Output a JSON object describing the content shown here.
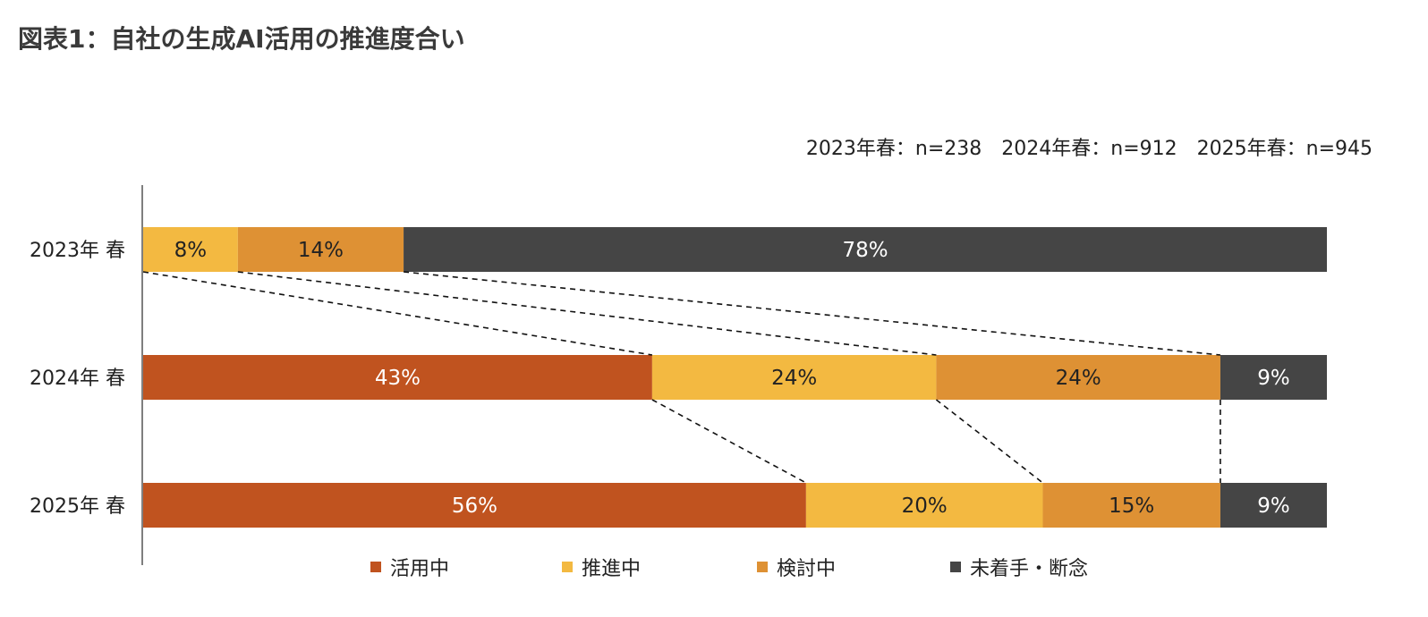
{
  "title": "図表1：自社の生成AI活用の推進度合い",
  "sample_note": "2023年春：n=238　2024年春：n=912　2025年春：n=945",
  "colors": {
    "活用中": "#c0531f",
    "推進中": "#f3b941",
    "検討中": "#de9134",
    "未着手・断念": "#454545"
  },
  "chart_data": {
    "type": "bar",
    "orientation": "horizontal",
    "stacked": true,
    "normalized": true,
    "categories": [
      "2023年 春",
      "2024年 春",
      "2025年 春"
    ],
    "series": [
      {
        "name": "活用中",
        "values": [
          0,
          43,
          56
        ],
        "labels": [
          "",
          "43%",
          "56%"
        ]
      },
      {
        "name": "推進中",
        "values": [
          8,
          24,
          20
        ],
        "labels": [
          "8%",
          "24%",
          "20%"
        ]
      },
      {
        "name": "検討中",
        "values": [
          14,
          24,
          15
        ],
        "labels": [
          "14%",
          "24%",
          "15%"
        ]
      },
      {
        "name": "未着手・断念",
        "values": [
          78,
          9,
          9
        ],
        "labels": [
          "78%",
          "9%",
          "9%"
        ]
      }
    ],
    "xlim": [
      0,
      100
    ],
    "legend": "bottom",
    "grid": false,
    "connector_lines": "dashed"
  }
}
